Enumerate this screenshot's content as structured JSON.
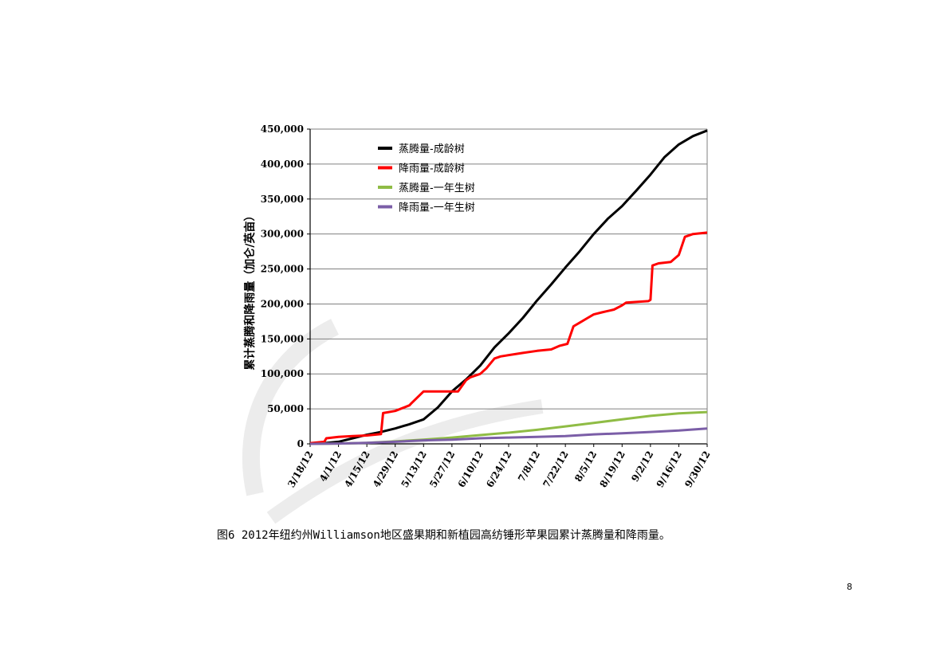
{
  "chart_data": {
    "type": "line",
    "title": "",
    "xlabel": "",
    "ylabel": "累计蒸腾和降雨量（加仑/英亩）",
    "ylim": [
      0,
      450000
    ],
    "yticks": [
      0,
      50000,
      100000,
      150000,
      200000,
      250000,
      300000,
      350000,
      400000,
      450000
    ],
    "ytick_labels": [
      "0",
      "50,000",
      "100,000",
      "150,000",
      "200,000",
      "250,000",
      "300,000",
      "350,000",
      "400,000",
      "450,000"
    ],
    "x_dates": [
      "3/18/12",
      "4/1/12",
      "4/15/12",
      "4/29/12",
      "5/13/12",
      "5/27/12",
      "6/10/12",
      "6/24/12",
      "7/8/12",
      "7/22/12",
      "8/5/12",
      "8/19/12",
      "9/2/12",
      "9/16/12",
      "9/30/12"
    ],
    "xlim": [
      "3/18/12",
      "9/30/12"
    ],
    "grid": "horizontal",
    "legend_position": "top-left",
    "series": [
      {
        "name": "蒸腾量-成龄树",
        "color": "#000000",
        "x": [
          "3/18/12",
          "3/25/12",
          "4/1/12",
          "4/8/12",
          "4/15/12",
          "4/22/12",
          "4/29/12",
          "5/6/12",
          "5/13/12",
          "5/20/12",
          "5/27/12",
          "6/3/12",
          "6/10/12",
          "6/17/12",
          "6/24/12",
          "7/1/12",
          "7/8/12",
          "7/15/12",
          "7/22/12",
          "7/29/12",
          "8/5/12",
          "8/12/12",
          "8/19/12",
          "8/26/12",
          "9/2/12",
          "9/9/12",
          "9/16/12",
          "9/23/12",
          "9/30/12"
        ],
        "values": [
          0,
          1000,
          3000,
          8000,
          13000,
          17000,
          22000,
          28000,
          35000,
          52000,
          75000,
          92000,
          112000,
          138000,
          158000,
          180000,
          205000,
          228000,
          252000,
          275000,
          300000,
          322000,
          340000,
          362000,
          385000,
          410000,
          428000,
          440000,
          448000
        ]
      },
      {
        "name": "降雨量-成龄树",
        "color": "#ff0000",
        "x": [
          "3/18/12",
          "3/25/12",
          "3/26/12",
          "4/1/12",
          "4/8/12",
          "4/15/12",
          "4/22/12",
          "4/23/12",
          "4/29/12",
          "5/6/12",
          "5/7/12",
          "5/13/12",
          "5/27/12",
          "5/30/12",
          "6/3/12",
          "6/5/12",
          "6/10/12",
          "6/13/12",
          "6/17/12",
          "6/20/12",
          "7/1/12",
          "7/8/12",
          "7/15/12",
          "7/19/12",
          "7/23/12",
          "7/26/12",
          "7/29/12",
          "8/2/12",
          "8/5/12",
          "8/9/12",
          "8/15/12",
          "8/19/12",
          "8/21/12",
          "9/1/12",
          "9/2/12",
          "9/3/12",
          "9/6/12",
          "9/12/12",
          "9/16/12",
          "9/19/12",
          "9/23/12",
          "9/30/12"
        ],
        "values": [
          1000,
          3000,
          8000,
          10000,
          11000,
          12000,
          14000,
          44000,
          47000,
          55000,
          58000,
          75000,
          75000,
          75000,
          91000,
          95000,
          100000,
          108000,
          122000,
          125000,
          130000,
          133000,
          135000,
          140000,
          143000,
          168000,
          173000,
          180000,
          185000,
          188000,
          192000,
          198000,
          202000,
          204000,
          206000,
          255000,
          258000,
          260000,
          270000,
          296000,
          300000,
          302000
        ]
      },
      {
        "name": "蒸腾量-一年生树",
        "color": "#8fbc45",
        "x": [
          "3/18/12",
          "4/1/12",
          "4/15/12",
          "4/29/12",
          "5/13/12",
          "5/27/12",
          "6/10/12",
          "6/24/12",
          "7/8/12",
          "7/22/12",
          "8/5/12",
          "8/19/12",
          "9/2/12",
          "9/16/12",
          "9/30/12"
        ],
        "values": [
          0,
          500,
          1500,
          3500,
          6000,
          9000,
          12500,
          16000,
          20000,
          25000,
          30000,
          35000,
          40000,
          43500,
          45500
        ]
      },
      {
        "name": "降雨量-一年生树",
        "color": "#7b5ea7",
        "x": [
          "3/18/12",
          "4/1/12",
          "4/15/12",
          "4/29/12",
          "5/13/12",
          "5/27/12",
          "6/10/12",
          "6/24/12",
          "7/8/12",
          "7/22/12",
          "8/5/12",
          "8/19/12",
          "9/2/12",
          "9/16/12",
          "9/30/12"
        ],
        "values": [
          0,
          500,
          1500,
          3000,
          5000,
          6000,
          8000,
          9000,
          10000,
          11000,
          13500,
          15000,
          17000,
          19000,
          22000
        ]
      }
    ]
  },
  "caption": "图6 2012年纽约州Williamson地区盛果期和新植园高纺锤形苹果园累计蒸腾量和降雨量。",
  "page_number": "8",
  "colors": {
    "grid": "#808080",
    "axis": "#000000",
    "watermark": "#e6e6e6"
  }
}
